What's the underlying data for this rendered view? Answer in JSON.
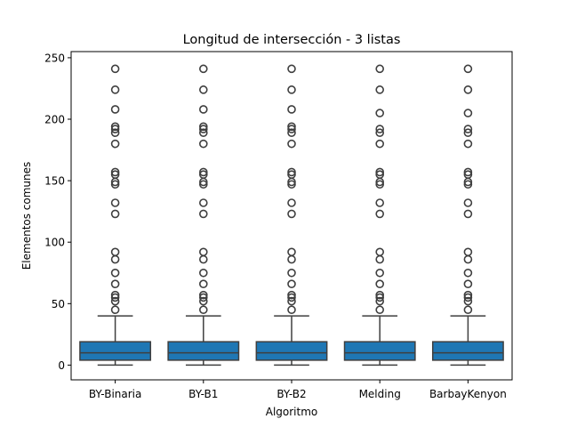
{
  "chart_data": {
    "type": "box",
    "title": "Longitud de intersección - 3 listas",
    "xlabel": "Algoritmo",
    "ylabel": "Elementos comunes",
    "categories": [
      "BY-Binaria",
      "BY-B1",
      "BY-B2",
      "Melding",
      "BarbayKenyon"
    ],
    "yticks": [
      0,
      50,
      100,
      150,
      200,
      250
    ],
    "ylim": [
      -12,
      255
    ],
    "box_color": "#1f77b4",
    "series": [
      {
        "min": 0,
        "q1": 4,
        "median": 10,
        "q3": 19,
        "max": 40,
        "outliers": [
          45,
          52,
          55,
          57,
          66,
          75,
          86,
          92,
          123,
          132,
          147,
          149,
          155,
          157,
          180,
          189,
          192,
          194,
          208,
          224,
          241
        ]
      },
      {
        "min": 0,
        "q1": 4,
        "median": 10,
        "q3": 19,
        "max": 40,
        "outliers": [
          45,
          52,
          55,
          57,
          66,
          75,
          86,
          92,
          123,
          132,
          147,
          149,
          155,
          157,
          180,
          189,
          192,
          194,
          208,
          224,
          241
        ]
      },
      {
        "min": 0,
        "q1": 4,
        "median": 10,
        "q3": 19,
        "max": 40,
        "outliers": [
          45,
          52,
          55,
          57,
          66,
          75,
          86,
          92,
          123,
          132,
          147,
          149,
          155,
          157,
          180,
          189,
          192,
          194,
          208,
          224,
          241
        ]
      },
      {
        "min": 0,
        "q1": 4,
        "median": 10,
        "q3": 19,
        "max": 40,
        "outliers": [
          45,
          52,
          55,
          57,
          66,
          75,
          86,
          92,
          123,
          132,
          147,
          149,
          155,
          157,
          180,
          189,
          192,
          205,
          224,
          241
        ]
      },
      {
        "min": 0,
        "q1": 4,
        "median": 10,
        "q3": 19,
        "max": 40,
        "outliers": [
          45,
          52,
          55,
          57,
          66,
          75,
          86,
          92,
          123,
          132,
          147,
          149,
          155,
          157,
          180,
          189,
          192,
          205,
          224,
          241
        ]
      }
    ]
  }
}
